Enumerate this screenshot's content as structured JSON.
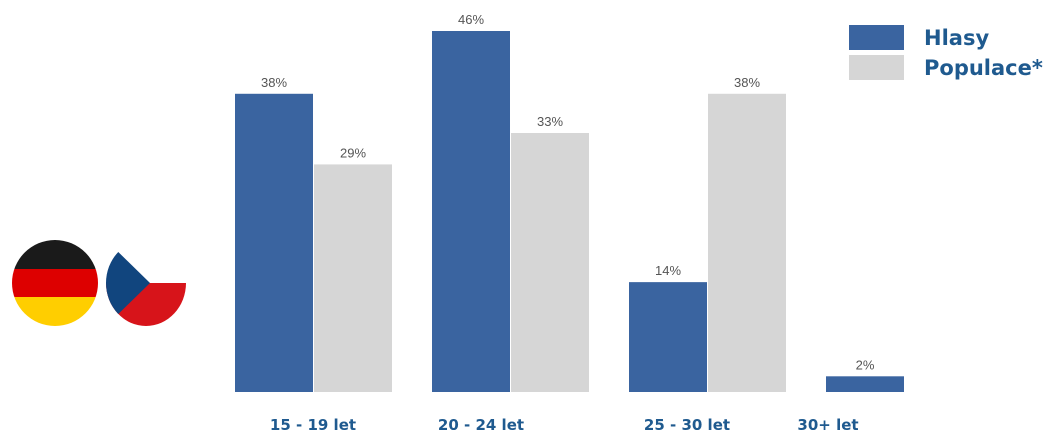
{
  "chart_data": {
    "type": "bar",
    "categories": [
      "15 - 19 let",
      "20 - 24 let",
      "25 - 30 let",
      "30+ let"
    ],
    "series": [
      {
        "name": "Hlasy",
        "values": [
          38,
          46,
          14,
          2
        ],
        "labels": [
          "38%",
          "46%",
          "14%",
          "2%"
        ],
        "color": "#3a64a0"
      },
      {
        "name": "Populace*",
        "values": [
          29,
          33,
          38,
          null
        ],
        "labels": [
          "29%",
          "33%",
          "38%",
          ""
        ],
        "color": "#d6d6d6"
      }
    ],
    "ylim": [
      0,
      46
    ],
    "grid": false,
    "legend_position": "top-right"
  },
  "flags": [
    {
      "icon": "germany-flag-icon",
      "colors": [
        "#1a1a1a",
        "#dd0000",
        "#ffce00"
      ]
    },
    {
      "icon": "czech-flag-icon",
      "colors": [
        "#ffffff",
        "#d7141a",
        "#11457e"
      ]
    }
  ],
  "colors": {
    "category_label": "#1f5a8f",
    "value_label": "#555555"
  }
}
